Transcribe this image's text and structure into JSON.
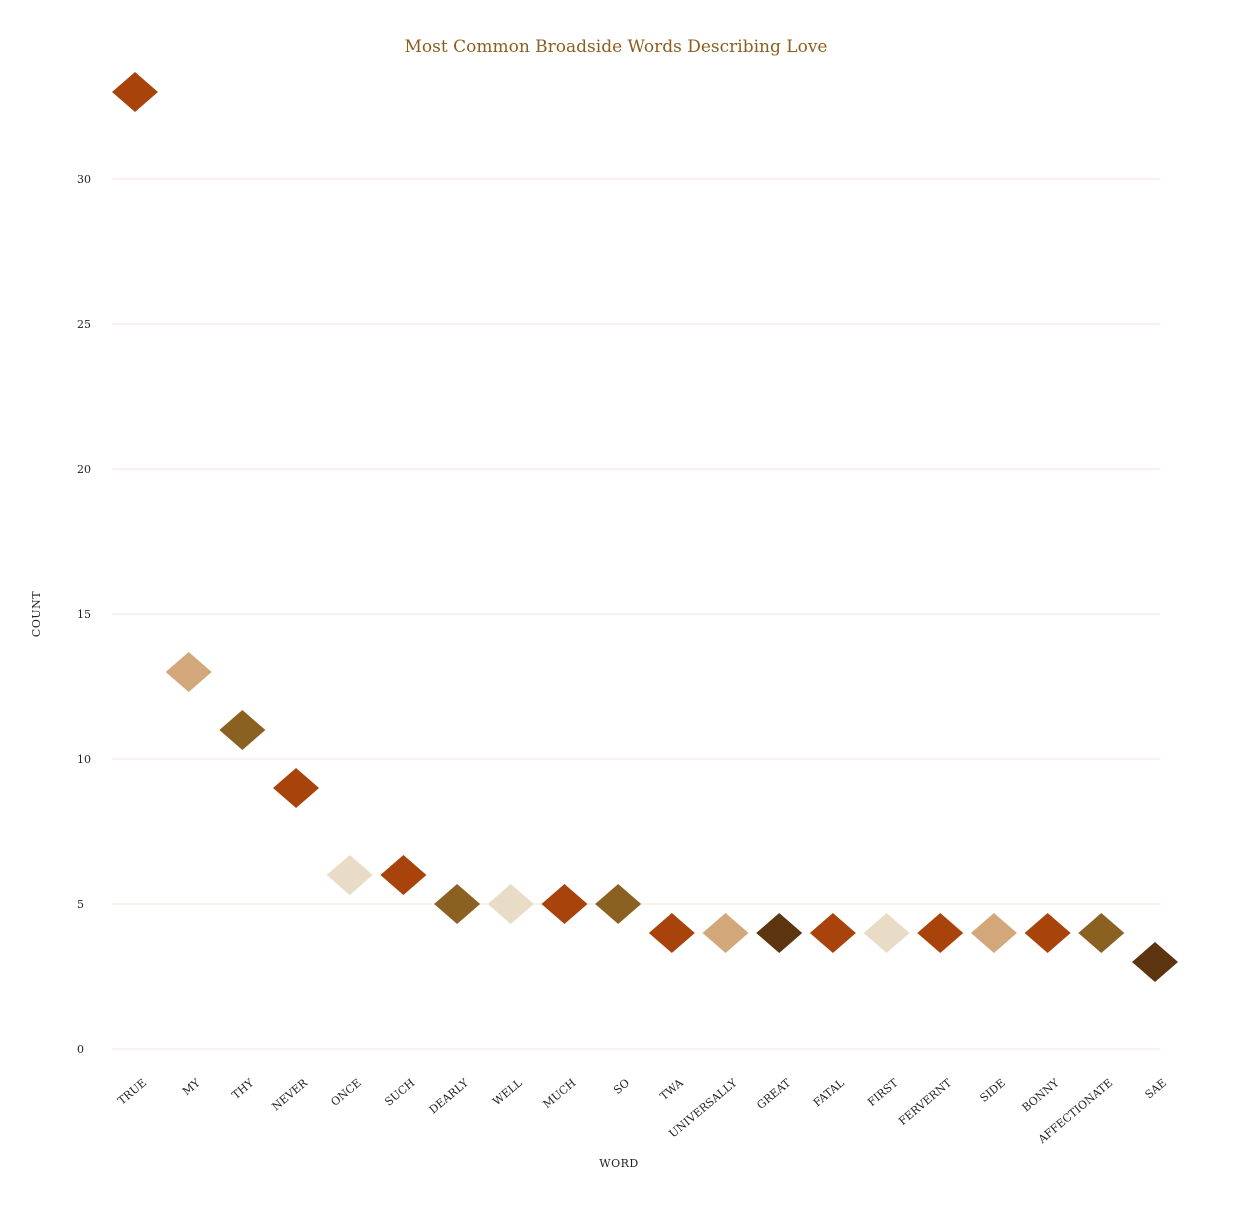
{
  "chart_data": {
    "type": "scatter",
    "marker": "diamond",
    "title": "Most Common Broadside Words Describing Love",
    "xlabel": "WORD",
    "ylabel": "COUNT",
    "ylim": [
      0,
      33
    ],
    "yticks": [
      0,
      5,
      10,
      15,
      20,
      25,
      30
    ],
    "grid": true,
    "categories": [
      "TRUE",
      "MY",
      "THY",
      "NEVER",
      "ONCE",
      "SUCH",
      "DEARLY",
      "WELL",
      "MUCH",
      "SO",
      "TWA",
      "UNIVERSALLY",
      "GREAT",
      "FATAL",
      "FIRST",
      "FERVERNT",
      "SIDE",
      "BONNY",
      "AFFECTIONATE",
      "SAE"
    ],
    "values": [
      33,
      13,
      11,
      9,
      6,
      6,
      5,
      5,
      5,
      5,
      4,
      4,
      4,
      4,
      4,
      4,
      4,
      4,
      4,
      3
    ],
    "colors": [
      "#a8440b",
      "#d2a87b",
      "#8a6120",
      "#a8440b",
      "#e8dcc6",
      "#a8440b",
      "#8a6120",
      "#e8dcc6",
      "#a8440b",
      "#8a6120",
      "#a8440b",
      "#d2a87b",
      "#5c3510",
      "#a8440b",
      "#e8dcc6",
      "#a8440b",
      "#d2a87b",
      "#a8440b",
      "#8a6120",
      "#5c3510"
    ]
  }
}
